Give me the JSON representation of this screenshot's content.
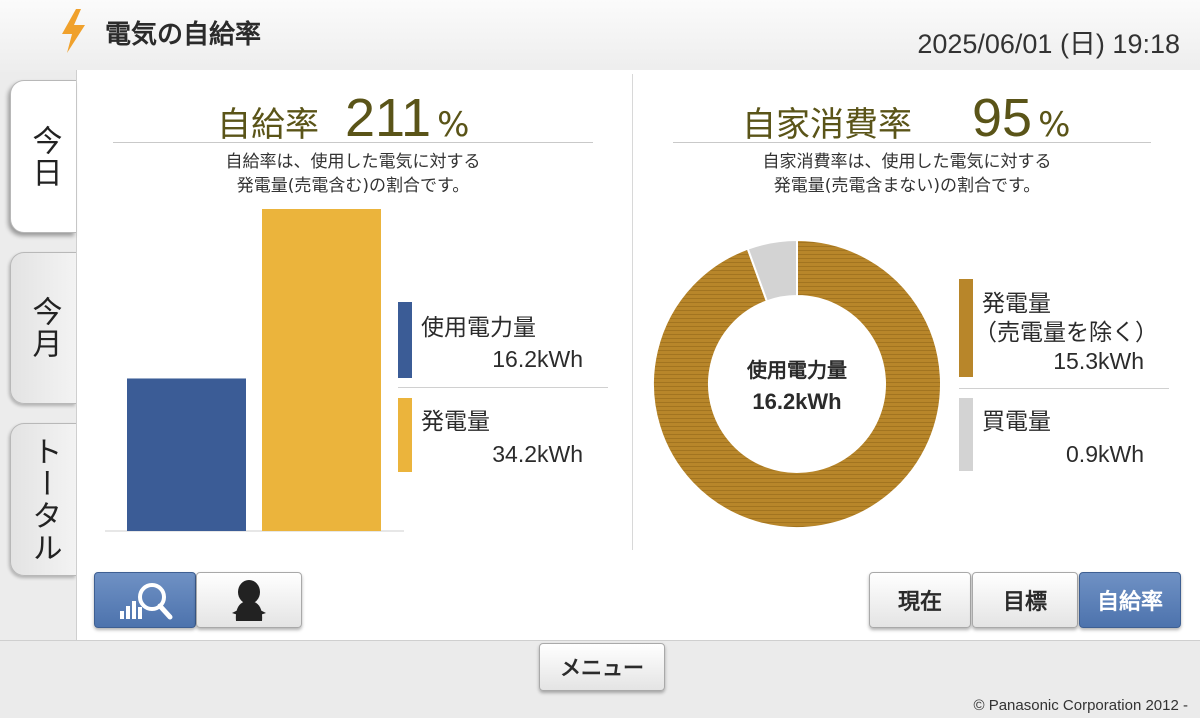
{
  "header": {
    "title": "電気の自給率",
    "datetime": "2025/06/01 (日) 19:18",
    "icon": "lightning-icon",
    "icon_color": "#f0a12c"
  },
  "tabs": [
    {
      "label": "今日",
      "active": true
    },
    {
      "label": "今月",
      "active": false
    },
    {
      "label": "トータル",
      "active": false
    }
  ],
  "self_sufficiency": {
    "label": "自給率",
    "value": "211",
    "unit": "%",
    "description_line1": "自給率は、使用した電気に対する",
    "description_line2": "発電量(売電含む)の割合です。",
    "legend": [
      {
        "label": "使用電力量",
        "value": "16.2kWh",
        "color": "#3b5c96"
      },
      {
        "label": "発電量",
        "value": "34.2kWh",
        "color": "#ebb43c"
      }
    ]
  },
  "self_consumption": {
    "label": "自家消費率",
    "value": "95",
    "unit": "%",
    "description_line1": "自家消費率は、使用した電気に対する",
    "description_line2": "発電量(売電含まない)の割合です。",
    "center_label": "使用電力量",
    "center_value": "16.2kWh",
    "legend": [
      {
        "label_line1": "発電量",
        "label_line2": "（売電量を除く）",
        "value": "15.3kWh",
        "color": "#b8862a"
      },
      {
        "label": "買電量",
        "value": "0.9kWh",
        "color": "#d3d3d3"
      }
    ]
  },
  "chart_data": [
    {
      "type": "bar",
      "categories": [
        "使用電力量",
        "発電量"
      ],
      "values": [
        16.2,
        34.2
      ],
      "colors": [
        "#3b5c96",
        "#ebb43c"
      ],
      "unit": "kWh"
    },
    {
      "type": "pie",
      "donut": true,
      "categories": [
        "発電量（売電量を除く）",
        "買電量"
      ],
      "values": [
        15.3,
        0.9
      ],
      "colors": [
        "#b8862a",
        "#d3d3d3"
      ],
      "unit": "kWh"
    }
  ],
  "view_buttons": {
    "graph_icon": "graph-magnifier-icon",
    "character_icon": "character-icon"
  },
  "mode_buttons": [
    {
      "label": "現在",
      "selected": false
    },
    {
      "label": "目標",
      "selected": false
    },
    {
      "label": "自給率",
      "selected": true
    }
  ],
  "footer": {
    "menu_label": "メニュー",
    "copyright": "© Panasonic Corporation 2012 -"
  }
}
